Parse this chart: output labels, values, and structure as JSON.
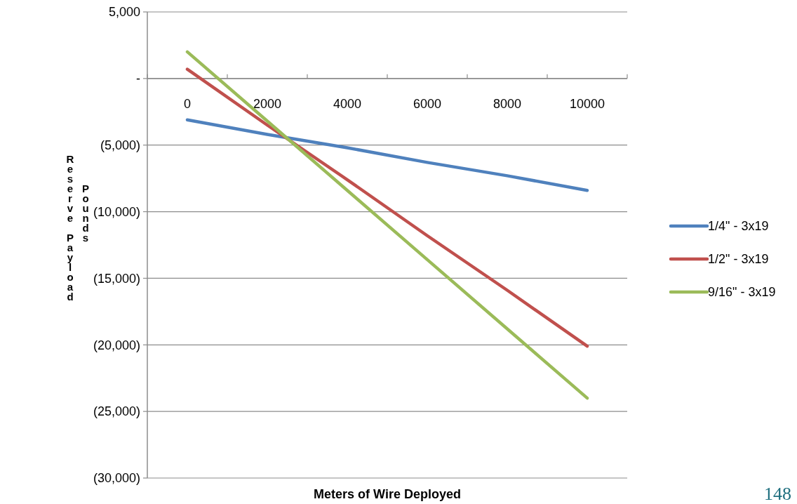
{
  "chart_data": {
    "type": "line",
    "xlabel": "Meters of Wire Deployed",
    "ylabel": "Reserve Payload Pounds",
    "categories": [
      "0",
      "2000",
      "4000",
      "6000",
      "8000",
      "10000"
    ],
    "series": [
      {
        "name": "1/4\" - 3x19",
        "color": "#4f81bd",
        "values": [
          -3100,
          -4200,
          -5200,
          -6300,
          -7300,
          -8400
        ]
      },
      {
        "name": "1/2\" - 3x19",
        "color": "#c0504d",
        "values": [
          700,
          -3500,
          -7600,
          -11800,
          -15900,
          -20100
        ]
      },
      {
        "name": "9/16\" - 3x19",
        "color": "#9bbb59",
        "values": [
          2000,
          -3200,
          -8400,
          -13600,
          -18800,
          -24000
        ]
      }
    ],
    "ylim": [
      -30000,
      5000
    ],
    "yticks": [
      {
        "value": 5000,
        "label": "5,000"
      },
      {
        "value": 0,
        "label": "-"
      },
      {
        "value": -5000,
        "label": "(5,000)"
      },
      {
        "value": -10000,
        "label": "(10,000)"
      },
      {
        "value": -15000,
        "label": "(15,000)"
      },
      {
        "value": -20000,
        "label": "(20,000)"
      },
      {
        "value": -25000,
        "label": "(25,000)"
      },
      {
        "value": -30000,
        "label": "(30,000)"
      }
    ],
    "grid": "y",
    "legend": "right",
    "marker": "none",
    "line_style": "solid",
    "annotations": [
      "148"
    ]
  }
}
